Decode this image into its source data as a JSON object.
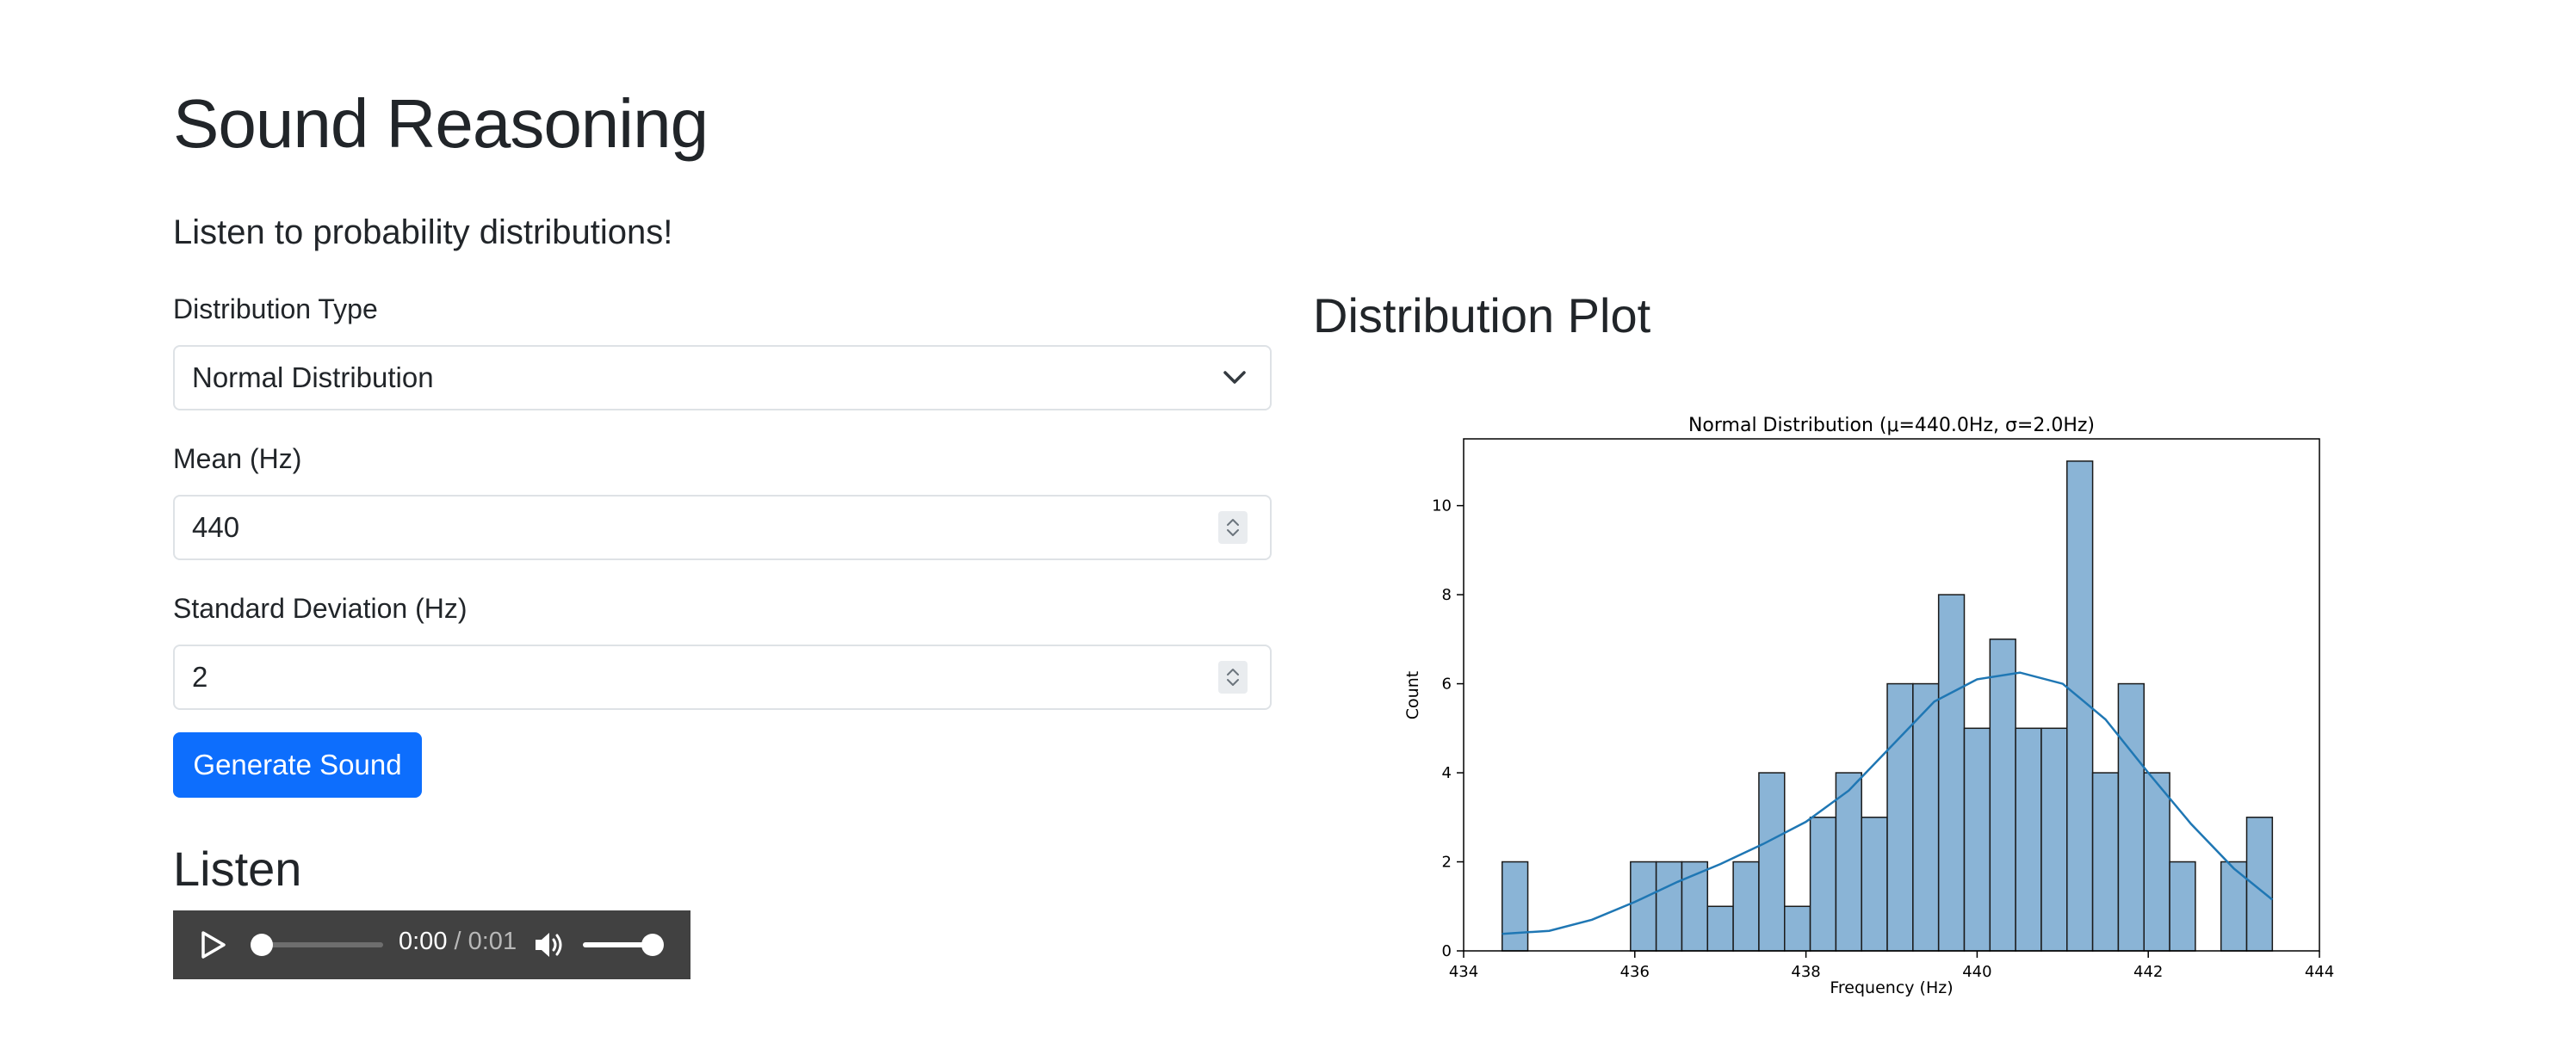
{
  "header": {
    "title": "Sound Reasoning",
    "lead": "Listen to probability distributions!"
  },
  "form": {
    "distribution_label": "Distribution Type",
    "distribution_value": "Normal Distribution",
    "mean_label": "Mean (Hz)",
    "mean_value": "440",
    "std_label": "Standard Deviation (Hz)",
    "std_value": "2",
    "generate_label": "Generate Sound"
  },
  "listen": {
    "heading": "Listen",
    "current_time": "0:00",
    "separator": " / ",
    "duration": "0:01",
    "progress": 0,
    "volume": 1
  },
  "plot_section": {
    "heading": "Distribution Plot"
  },
  "colors": {
    "primary": "#0d6efd",
    "bar_fill": "#8ab4d6",
    "kde_line": "#1f77b4",
    "audio_bg": "#414141"
  },
  "chart_data": {
    "type": "bar",
    "title": "Normal Distribution (μ=440.0Hz, σ=2.0Hz)",
    "xlabel": "Frequency (Hz)",
    "ylabel": "Count",
    "xlim": [
      434,
      444
    ],
    "ylim": [
      0,
      11.5
    ],
    "xticks": [
      "434",
      "436",
      "438",
      "440",
      "442",
      "444"
    ],
    "yticks": [
      "0",
      "2",
      "4",
      "6",
      "8",
      "10"
    ],
    "bin_edges": [
      434.45,
      434.75,
      435.05,
      435.35,
      435.65,
      435.95,
      436.25,
      436.55,
      436.85,
      437.15,
      437.45,
      437.75,
      438.05,
      438.35,
      438.65,
      438.95,
      439.25,
      439.55,
      439.85,
      440.15,
      440.45,
      440.75,
      441.05,
      441.35,
      441.65,
      441.95,
      442.25,
      442.55,
      442.85,
      443.15,
      443.45
    ],
    "counts": [
      2,
      0,
      0,
      0,
      0,
      2,
      2,
      2,
      1,
      2,
      4,
      1,
      3,
      4,
      3,
      6,
      6,
      8,
      5,
      7,
      5,
      5,
      11,
      4,
      6,
      4,
      2,
      0,
      2,
      3
    ],
    "kde": {
      "x": [
        434.45,
        435.0,
        435.5,
        436.0,
        436.5,
        437.0,
        437.5,
        438.0,
        438.5,
        439.0,
        439.5,
        440.0,
        440.5,
        441.0,
        441.5,
        442.0,
        442.5,
        443.0,
        443.45
      ],
      "y": [
        0.38,
        0.45,
        0.7,
        1.1,
        1.55,
        1.95,
        2.4,
        2.9,
        3.6,
        4.6,
        5.6,
        6.1,
        6.25,
        6.0,
        5.2,
        4.0,
        2.85,
        1.85,
        1.15
      ]
    }
  }
}
